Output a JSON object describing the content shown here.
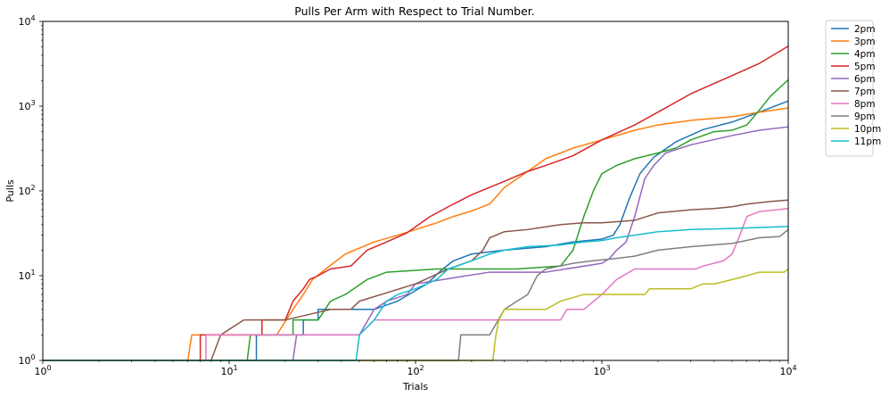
{
  "chart_data": {
    "type": "line",
    "title": "Pulls Per Arm with Respect to Trial Number.",
    "xlabel": "Trials",
    "ylabel": "Pulls",
    "xscale": "log",
    "yscale": "log",
    "xlim": [
      1,
      10000
    ],
    "ylim": [
      1,
      10000
    ],
    "xticks": [
      {
        "value": 1,
        "base": "10",
        "exp": "0"
      },
      {
        "value": 10,
        "base": "10",
        "exp": "1"
      },
      {
        "value": 100,
        "base": "10",
        "exp": "2"
      },
      {
        "value": 1000,
        "base": "10",
        "exp": "3"
      },
      {
        "value": 10000,
        "base": "10",
        "exp": "4"
      }
    ],
    "yticks": [
      {
        "value": 1,
        "base": "10",
        "exp": "0"
      },
      {
        "value": 10,
        "base": "10",
        "exp": "1"
      },
      {
        "value": 100,
        "base": "10",
        "exp": "2"
      },
      {
        "value": 1000,
        "base": "10",
        "exp": "3"
      },
      {
        "value": 10000,
        "base": "10",
        "exp": "4"
      }
    ],
    "grid": false,
    "legend_position": "outside-top-right",
    "series": [
      {
        "name": "2pm",
        "color": "#1f77b4",
        "points": [
          [
            1,
            1
          ],
          [
            14,
            1
          ],
          [
            14,
            2
          ],
          [
            25,
            2
          ],
          [
            25,
            3
          ],
          [
            30,
            3
          ],
          [
            30,
            4
          ],
          [
            60,
            4
          ],
          [
            80,
            5
          ],
          [
            115,
            8
          ],
          [
            140,
            12
          ],
          [
            160,
            15
          ],
          [
            200,
            18
          ],
          [
            300,
            20
          ],
          [
            500,
            22
          ],
          [
            700,
            25
          ],
          [
            1000,
            27
          ],
          [
            1150,
            30
          ],
          [
            1250,
            40
          ],
          [
            1400,
            80
          ],
          [
            1600,
            160
          ],
          [
            1900,
            250
          ],
          [
            2500,
            380
          ],
          [
            3500,
            530
          ],
          [
            5000,
            650
          ],
          [
            7000,
            850
          ],
          [
            10000,
            1150
          ]
        ]
      },
      {
        "name": "3pm",
        "color": "#ff7f0e",
        "points": [
          [
            1,
            1
          ],
          [
            6,
            1
          ],
          [
            6.3,
            2
          ],
          [
            18,
            2
          ],
          [
            22,
            4
          ],
          [
            25,
            6
          ],
          [
            28,
            9
          ],
          [
            33,
            12
          ],
          [
            42,
            18
          ],
          [
            60,
            25
          ],
          [
            80,
            30
          ],
          [
            100,
            35
          ],
          [
            130,
            42
          ],
          [
            160,
            50
          ],
          [
            200,
            58
          ],
          [
            250,
            70
          ],
          [
            300,
            110
          ],
          [
            400,
            170
          ],
          [
            500,
            240
          ],
          [
            700,
            320
          ],
          [
            1000,
            400
          ],
          [
            1500,
            520
          ],
          [
            2000,
            600
          ],
          [
            3000,
            680
          ],
          [
            5000,
            750
          ],
          [
            7000,
            850
          ],
          [
            10000,
            950
          ]
        ]
      },
      {
        "name": "4pm",
        "color": "#2ca02c",
        "points": [
          [
            1,
            1
          ],
          [
            12.5,
            1
          ],
          [
            13,
            2
          ],
          [
            22,
            2
          ],
          [
            22,
            3
          ],
          [
            30,
            3
          ],
          [
            35,
            5
          ],
          [
            42,
            6
          ],
          [
            55,
            9
          ],
          [
            70,
            11
          ],
          [
            130,
            12
          ],
          [
            350,
            12
          ],
          [
            600,
            13
          ],
          [
            700,
            20
          ],
          [
            800,
            50
          ],
          [
            900,
            100
          ],
          [
            1000,
            160
          ],
          [
            1200,
            200
          ],
          [
            1500,
            240
          ],
          [
            2000,
            280
          ],
          [
            2500,
            320
          ],
          [
            3000,
            400
          ],
          [
            4000,
            500
          ],
          [
            5000,
            520
          ],
          [
            6000,
            600
          ],
          [
            7000,
            900
          ],
          [
            8000,
            1300
          ],
          [
            10000,
            2050
          ]
        ]
      },
      {
        "name": "5pm",
        "color": "#d62728",
        "points": [
          [
            1,
            1
          ],
          [
            7,
            1
          ],
          [
            7,
            2
          ],
          [
            12,
            2
          ],
          [
            15,
            2
          ],
          [
            15,
            3
          ],
          [
            20,
            3
          ],
          [
            22,
            5
          ],
          [
            25,
            7
          ],
          [
            27,
            9
          ],
          [
            30,
            10
          ],
          [
            35,
            12
          ],
          [
            45,
            13
          ],
          [
            55,
            20
          ],
          [
            70,
            25
          ],
          [
            90,
            32
          ],
          [
            120,
            50
          ],
          [
            150,
            65
          ],
          [
            200,
            90
          ],
          [
            300,
            130
          ],
          [
            400,
            170
          ],
          [
            500,
            200
          ],
          [
            700,
            260
          ],
          [
            1000,
            400
          ],
          [
            1500,
            600
          ],
          [
            2000,
            850
          ],
          [
            3000,
            1400
          ],
          [
            5000,
            2300
          ],
          [
            7000,
            3200
          ],
          [
            10000,
            5100
          ]
        ]
      },
      {
        "name": "6pm",
        "color": "#9467bd",
        "points": [
          [
            1,
            1
          ],
          [
            22,
            1
          ],
          [
            23,
            2
          ],
          [
            50,
            2
          ],
          [
            60,
            4
          ],
          [
            70,
            5
          ],
          [
            90,
            6
          ],
          [
            100,
            8
          ],
          [
            140,
            9
          ],
          [
            250,
            11
          ],
          [
            500,
            11
          ],
          [
            1000,
            14
          ],
          [
            1100,
            16
          ],
          [
            1200,
            20
          ],
          [
            1350,
            25
          ],
          [
            1500,
            50
          ],
          [
            1700,
            140
          ],
          [
            1900,
            200
          ],
          [
            2200,
            280
          ],
          [
            3000,
            350
          ],
          [
            5000,
            450
          ],
          [
            7000,
            520
          ],
          [
            10000,
            570
          ]
        ]
      },
      {
        "name": "7pm",
        "color": "#8c564b",
        "points": [
          [
            1,
            1
          ],
          [
            8,
            1
          ],
          [
            9,
            2
          ],
          [
            12,
            3
          ],
          [
            20,
            3
          ],
          [
            35,
            4
          ],
          [
            45,
            4
          ],
          [
            50,
            5
          ],
          [
            100,
            8
          ],
          [
            150,
            12
          ],
          [
            200,
            15
          ],
          [
            230,
            20
          ],
          [
            250,
            28
          ],
          [
            300,
            33
          ],
          [
            400,
            35
          ],
          [
            600,
            40
          ],
          [
            800,
            42
          ],
          [
            1000,
            42
          ],
          [
            1500,
            45
          ],
          [
            2000,
            55
          ],
          [
            3000,
            60
          ],
          [
            4000,
            62
          ],
          [
            5000,
            65
          ],
          [
            6000,
            70
          ],
          [
            8000,
            75
          ],
          [
            10000,
            78
          ]
        ]
      },
      {
        "name": "8pm",
        "color": "#e377c2",
        "points": [
          [
            1,
            1
          ],
          [
            7.5,
            1
          ],
          [
            7.5,
            2
          ],
          [
            20,
            2
          ],
          [
            50,
            2
          ],
          [
            60,
            3
          ],
          [
            90,
            3
          ],
          [
            200,
            3
          ],
          [
            300,
            3
          ],
          [
            400,
            3
          ],
          [
            600,
            3
          ],
          [
            650,
            4
          ],
          [
            800,
            4
          ],
          [
            1000,
            6
          ],
          [
            1200,
            9
          ],
          [
            1500,
            12
          ],
          [
            2500,
            12
          ],
          [
            3200,
            12
          ],
          [
            3500,
            13
          ],
          [
            4500,
            15
          ],
          [
            5000,
            18
          ],
          [
            5500,
            30
          ],
          [
            6000,
            50
          ],
          [
            7000,
            57
          ],
          [
            10000,
            62
          ]
        ]
      },
      {
        "name": "9pm",
        "color": "#7f7f7f",
        "points": [
          [
            1,
            1
          ],
          [
            170,
            1
          ],
          [
            175,
            2
          ],
          [
            250,
            2
          ],
          [
            300,
            4
          ],
          [
            350,
            5
          ],
          [
            400,
            6
          ],
          [
            450,
            10
          ],
          [
            500,
            12
          ],
          [
            700,
            14
          ],
          [
            900,
            15
          ],
          [
            1200,
            16
          ],
          [
            1500,
            17
          ],
          [
            2000,
            20
          ],
          [
            3000,
            22
          ],
          [
            5000,
            24
          ],
          [
            7000,
            28
          ],
          [
            9000,
            29
          ],
          [
            10000,
            35
          ]
        ]
      },
      {
        "name": "10pm",
        "color": "#bcbd22",
        "points": [
          [
            1,
            1
          ],
          [
            260,
            1
          ],
          [
            270,
            2
          ],
          [
            280,
            3
          ],
          [
            300,
            4
          ],
          [
            500,
            4
          ],
          [
            600,
            5
          ],
          [
            800,
            6
          ],
          [
            1500,
            6
          ],
          [
            1700,
            6
          ],
          [
            1800,
            7
          ],
          [
            3000,
            7
          ],
          [
            3500,
            8
          ],
          [
            4000,
            8
          ],
          [
            5000,
            9
          ],
          [
            6000,
            10
          ],
          [
            7000,
            11
          ],
          [
            9500,
            11
          ],
          [
            10000,
            12
          ]
        ]
      },
      {
        "name": "11pm",
        "color": "#17becf",
        "points": [
          [
            1,
            1
          ],
          [
            48,
            1
          ],
          [
            50,
            2
          ],
          [
            60,
            3
          ],
          [
            70,
            5
          ],
          [
            80,
            6
          ],
          [
            100,
            7
          ],
          [
            130,
            9
          ],
          [
            150,
            12
          ],
          [
            200,
            15
          ],
          [
            250,
            18
          ],
          [
            300,
            20
          ],
          [
            400,
            22
          ],
          [
            600,
            23
          ],
          [
            800,
            25
          ],
          [
            1000,
            26
          ],
          [
            1200,
            28
          ],
          [
            1500,
            30
          ],
          [
            2000,
            33
          ],
          [
            3000,
            35
          ],
          [
            5000,
            36
          ],
          [
            7000,
            37
          ],
          [
            10000,
            38
          ]
        ]
      }
    ]
  }
}
